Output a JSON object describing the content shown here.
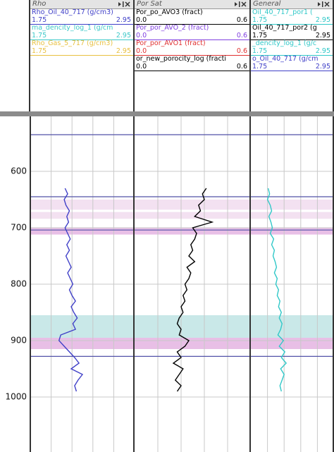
{
  "depth_axis": {
    "ylim": [
      500,
      1100
    ],
    "ticks": [
      600,
      700,
      800,
      900,
      1000
    ]
  },
  "zones": [
    {
      "top": 650,
      "bottom": 668,
      "color": "#f1dcee"
    },
    {
      "top": 672,
      "bottom": 684,
      "color": "#f1dcee"
    },
    {
      "top": 700,
      "bottom": 712,
      "color": "#e4b4e2"
    },
    {
      "top": 855,
      "bottom": 895,
      "color": "#bfe4e4"
    },
    {
      "top": 895,
      "bottom": 915,
      "color": "#e4b4e2"
    }
  ],
  "markers": [
    {
      "depth": 535,
      "color": "#5252a8"
    },
    {
      "depth": 645,
      "color": "#5252a8"
    },
    {
      "depth": 704,
      "color": "#5252a8"
    },
    {
      "depth": 928,
      "color": "#5252a8"
    }
  ],
  "depths": [
    630,
    640,
    650,
    660,
    670,
    680,
    690,
    700,
    710,
    720,
    730,
    740,
    750,
    760,
    770,
    780,
    790,
    800,
    810,
    820,
    830,
    840,
    850,
    860,
    870,
    880,
    890,
    900,
    910,
    920,
    930,
    940,
    950,
    960,
    970,
    980,
    990
  ],
  "tracks": [
    {
      "title": "Rho",
      "curves": [
        {
          "name": "Rho_Oil_40_717 (g/cm3)",
          "color": "#4040c8",
          "min": "1.75",
          "max": "2.95",
          "values": [
            2.15,
            2.18,
            2.14,
            2.16,
            2.2,
            2.17,
            2.19,
            2.15,
            2.18,
            2.21,
            2.17,
            2.2,
            2.16,
            2.19,
            2.22,
            2.18,
            2.21,
            2.24,
            2.2,
            2.23,
            2.27,
            2.22,
            2.25,
            2.29,
            2.24,
            2.27,
            2.1,
            2.08,
            2.14,
            2.2,
            2.26,
            2.31,
            2.22,
            2.35,
            2.3,
            2.26,
            2.28
          ]
        },
        {
          "name": "ma_dencity_log_1 (g/cm",
          "color": "#3cc8c8",
          "min": "1.75",
          "max": "2.95"
        },
        {
          "name": "Rho_Gas_5_717 (g/cm3)",
          "color": "#e8c040",
          "min": "1.75",
          "max": "2.95"
        }
      ]
    },
    {
      "title": "Por Sat",
      "curves": [
        {
          "name": "Por_po_AVO3 (fract)",
          "color": "#000000",
          "min": "0.0",
          "max": "0.6",
          "values": [
            0.37,
            0.35,
            0.36,
            0.33,
            0.34,
            0.31,
            0.4,
            0.3,
            0.32,
            0.31,
            0.29,
            0.3,
            0.28,
            0.31,
            0.27,
            0.29,
            0.28,
            0.26,
            0.27,
            0.25,
            0.26,
            0.24,
            0.25,
            0.23,
            0.22,
            0.24,
            0.23,
            0.28,
            0.26,
            0.22,
            0.24,
            0.2,
            0.25,
            0.23,
            0.21,
            0.24,
            0.22
          ]
        },
        {
          "name": "Por_por_AVO_2 (fract)",
          "color": "#8040e0",
          "min": "0.0",
          "max": "0.6"
        },
        {
          "name": "Por_por_AVO1 (fract)",
          "color": "#e03030",
          "min": "0.0",
          "max": "0.6"
        },
        {
          "name": "or_new_porocity_log (fracti",
          "color": "#000000",
          "min": "0.0",
          "max": "0.6"
        }
      ]
    },
    {
      "title": "General",
      "curves": [
        {
          "name": "Oil_40_717_por1 (",
          "color": "#30c8c8",
          "min": "1.75",
          "max": "2.95",
          "values": [
            2.0,
            2.02,
            1.99,
            2.03,
            2.05,
            2.01,
            2.04,
            2.06,
            2.03,
            2.08,
            2.05,
            2.09,
            2.07,
            2.1,
            2.12,
            2.09,
            2.13,
            2.11,
            2.15,
            2.13,
            2.17,
            2.15,
            2.19,
            2.16,
            2.2,
            2.18,
            2.14,
            2.22,
            2.16,
            2.24,
            2.19,
            2.26,
            2.18,
            2.23,
            2.2,
            2.17,
            2.19
          ]
        },
        {
          "name": "Oil_40_717_por2 (g",
          "color": "#000000",
          "min": "1.75",
          "max": "2.95"
        },
        {
          "name": "_dencity_log_1 (g/c",
          "color": "#30c8c8",
          "min": "1.75",
          "max": "2.95"
        },
        {
          "name": "o_Oil_40_717 (g/cm",
          "color": "#4040c8",
          "min": "1.75",
          "max": "2.95"
        }
      ]
    }
  ]
}
